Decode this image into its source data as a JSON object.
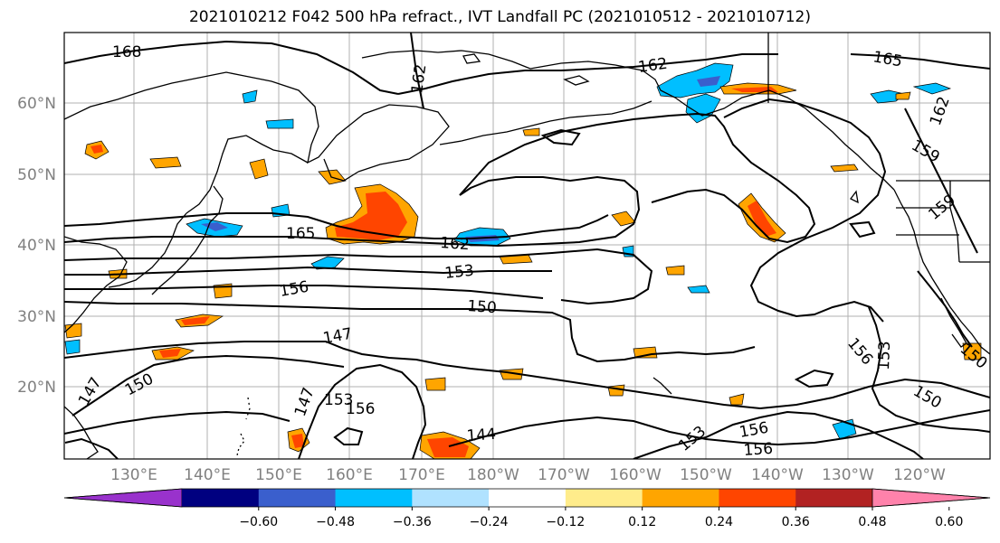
{
  "title": "2021010212 F042 500 hPa refract., IVT Landfall PC (2021010512 - 2021010712)",
  "lat_labels": [
    "60°N",
    "50°N",
    "40°N",
    "30°N",
    "20°N"
  ],
  "lon_labels": [
    "130°E",
    "140°E",
    "150°E",
    "160°E",
    "170°E",
    "180°W",
    "170°W",
    "160°W",
    "150°W",
    "140°W",
    "130°W",
    "120°W"
  ],
  "contour_labels": [
    "168",
    "162",
    "162",
    "165",
    "165",
    "162",
    "153",
    "156",
    "150",
    "147",
    "150",
    "147",
    "147",
    "153",
    "156",
    "144",
    "159",
    "162",
    "159",
    "156",
    "153",
    "153",
    "156",
    "156",
    "150",
    "150"
  ],
  "colorbar": {
    "ticks": [
      "−0.60",
      "−0.48",
      "−0.36",
      "−0.24",
      "−0.12",
      "0.12",
      "0.24",
      "0.36",
      "0.48",
      "0.60"
    ],
    "colors": [
      "#9932CC",
      "#000080",
      "#3A5FCD",
      "#00BFFF",
      "#B0E2FF",
      "#FFFFFF",
      "#FFEC8B",
      "#FFA500",
      "#FF4500",
      "#B22222",
      "#FF82AB"
    ]
  }
}
